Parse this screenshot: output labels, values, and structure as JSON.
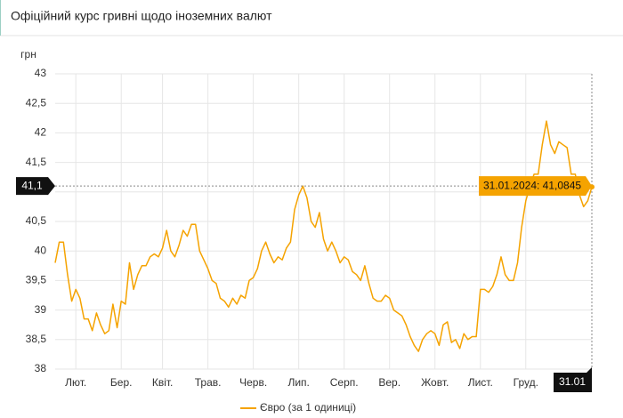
{
  "chart_data": {
    "type": "line",
    "title": "Офіційний курс гривні щодо іноземних валют",
    "ylabel": "грн",
    "ylim": [
      38,
      43
    ],
    "yticks": [
      38,
      {
        "value": 38.5,
        "label": "38,5"
      },
      39,
      {
        "value": 39.5,
        "label": "39,5"
      },
      40,
      {
        "value": 40.5,
        "label": "40,5"
      },
      41,
      {
        "value": 41.5,
        "label": "41,5"
      },
      42,
      {
        "value": 42.5,
        "label": "42,5"
      },
      43
    ],
    "xlim": [
      0,
      130
    ],
    "xticks": [
      {
        "value": 5,
        "label": "Лют."
      },
      {
        "value": 16,
        "label": "Бер."
      },
      {
        "value": 26,
        "label": "Квіт."
      },
      {
        "value": 37,
        "label": "Трав."
      },
      {
        "value": 48,
        "label": "Черв."
      },
      {
        "value": 59,
        "label": "Лип."
      },
      {
        "value": 70,
        "label": "Серп."
      },
      {
        "value": 81,
        "label": "Вер."
      },
      {
        "value": 92,
        "label": "Жовт."
      },
      {
        "value": 103,
        "label": "Лист."
      },
      {
        "value": 114,
        "label": "Груд."
      }
    ],
    "grid": true,
    "series": [
      {
        "name": "Євро (за 1 одиниці)",
        "color": "#f5a300",
        "values": [
          39.8,
          40.15,
          40.15,
          39.6,
          39.15,
          39.35,
          39.2,
          38.85,
          38.85,
          38.65,
          38.95,
          38.75,
          38.6,
          38.65,
          39.1,
          38.7,
          39.15,
          39.1,
          39.8,
          39.35,
          39.6,
          39.75,
          39.75,
          39.9,
          39.95,
          39.9,
          40.05,
          40.35,
          40.0,
          39.9,
          40.1,
          40.35,
          40.25,
          40.45,
          40.45,
          40.0,
          39.85,
          39.7,
          39.5,
          39.45,
          39.2,
          39.15,
          39.05,
          39.2,
          39.1,
          39.25,
          39.2,
          39.5,
          39.55,
          39.7,
          40.0,
          40.15,
          39.95,
          39.8,
          39.9,
          39.85,
          40.05,
          40.15,
          40.7,
          40.95,
          41.1,
          40.9,
          40.5,
          40.4,
          40.65,
          40.2,
          40.0,
          40.15,
          40.0,
          39.8,
          39.9,
          39.85,
          39.65,
          39.6,
          39.5,
          39.75,
          39.45,
          39.2,
          39.15,
          39.15,
          39.25,
          39.2,
          39.0,
          38.95,
          38.9,
          38.75,
          38.55,
          38.4,
          38.3,
          38.5,
          38.6,
          38.65,
          38.6,
          38.4,
          38.75,
          38.8,
          38.45,
          38.5,
          38.35,
          38.6,
          38.5,
          38.55,
          38.55,
          39.35,
          39.35,
          39.3,
          39.4,
          39.6,
          39.9,
          39.6,
          39.5,
          39.5,
          39.8,
          40.4,
          40.85,
          41.1,
          41.3,
          41.3,
          41.8,
          42.2,
          41.8,
          41.65,
          41.85,
          41.8,
          41.75,
          41.3,
          41.3,
          40.95,
          40.75,
          40.85,
          41.0845
        ]
      }
    ],
    "crosshair": {
      "x": {
        "value": 130,
        "label": "31.01"
      },
      "y": {
        "value": 41.1,
        "label": "41,1"
      },
      "tooltip": "31.01.2024: 41,0845"
    }
  }
}
